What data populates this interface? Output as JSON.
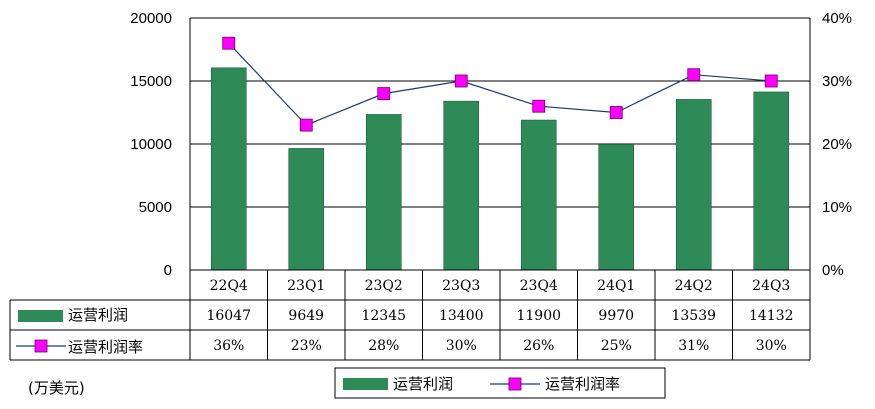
{
  "unit_label": "(万美元)",
  "colors": {
    "bar": "#2e8b57",
    "line": "#1f3a6e",
    "marker": "#ff00ff"
  },
  "chart_data": {
    "type": "bar",
    "categories": [
      "22Q4",
      "23Q1",
      "23Q2",
      "23Q3",
      "23Q4",
      "24Q1",
      "24Q2",
      "24Q3"
    ],
    "series": [
      {
        "name": "运营利润",
        "type": "bar",
        "axis": "left",
        "values": [
          16047,
          9649,
          12345,
          13400,
          11900,
          9970,
          13539,
          14132
        ]
      },
      {
        "name": "运营利润率",
        "type": "line",
        "axis": "right",
        "values": [
          0.36,
          0.23,
          0.28,
          0.3,
          0.26,
          0.25,
          0.31,
          0.3
        ],
        "labels": [
          "36%",
          "23%",
          "28%",
          "30%",
          "26%",
          "25%",
          "31%",
          "30%"
        ]
      }
    ],
    "ylim_left": [
      0,
      20000
    ],
    "ylim_right": [
      0,
      0.4
    ],
    "yticks_left": [
      "0",
      "5000",
      "10000",
      "15000",
      "20000"
    ],
    "yticks_right": [
      "0%",
      "10%",
      "20%",
      "30%",
      "40%"
    ],
    "grid": true,
    "legend": {
      "position": "bottom-right",
      "items": [
        "运营利润",
        "运营利润率"
      ]
    },
    "data_table": true
  }
}
